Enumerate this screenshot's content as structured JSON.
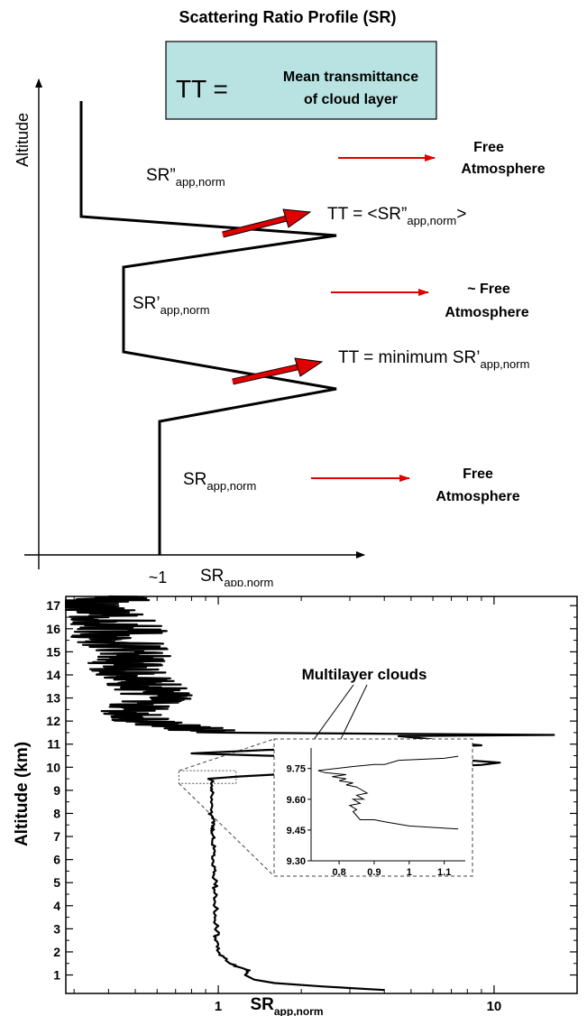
{
  "chart_data": [
    {
      "type": "line",
      "title": "Scattering Ratio Profile (SR)",
      "xlabel_main": "SR",
      "xlabel_sub": "app,norm",
      "ylabel": "Altitude",
      "x_tick": "~1",
      "tt_box": {
        "lhs": "TT =",
        "line1": "Mean transmittance",
        "line2": "of cloud layer"
      },
      "layers": [
        {
          "label_main": "SR”",
          "label_sub": "app,norm",
          "arrow_text_1": "Free",
          "arrow_text_2": "Atmosphere"
        },
        {
          "label_main": "SR’",
          "label_sub": "app,norm",
          "arrow_text_1": "~ Free",
          "arrow_text_2": "Atmosphere"
        },
        {
          "label_main": "SR",
          "label_sub": "app,norm",
          "arrow_text_1": "Free",
          "arrow_text_2": "Atmosphere"
        }
      ],
      "tt_annotations": [
        {
          "prefix": "TT = <SR”",
          "sub": "app,norm",
          "suffix": ">"
        },
        {
          "prefix": "TT = minimum SR’",
          "sub": "app,norm",
          "suffix": ""
        }
      ]
    },
    {
      "type": "line",
      "xlabel_main": "SR",
      "xlabel_sub": "app,norm",
      "ylabel": "Altitude (km)",
      "xscale": "log",
      "xlim": [
        0.28,
        20
      ],
      "ylim": [
        0.2,
        17.4
      ],
      "x_tick_labels": [
        "1",
        "10"
      ],
      "x_ticks": [
        1,
        10
      ],
      "y_ticks": [
        1,
        2,
        3,
        4,
        5,
        6,
        7,
        8,
        9,
        10,
        11,
        12,
        13,
        14,
        15,
        16,
        17
      ],
      "annotation": "Multilayer clouds",
      "series": [
        {
          "x": [
            4.0,
            2.4,
            1.6,
            1.35,
            1.25,
            1.3,
            1.18,
            1.1,
            1.05,
            1.0,
            1.0,
            0.98,
            0.99,
            0.98,
            0.97,
            0.98,
            0.97,
            0.98,
            0.97,
            0.98,
            0.96,
            0.97,
            0.96,
            0.97,
            0.96,
            0.95,
            0.96,
            0.95,
            0.96,
            0.95,
            0.95,
            0.94,
            0.95,
            0.94,
            0.95,
            0.95,
            0.94,
            0.95,
            0.94,
            0.95,
            0.96,
            0.94,
            0.95,
            0.94,
            0.95,
            0.94,
            0.96,
            0.92,
            1.2,
            1.7,
            2.5,
            4.0,
            6.0,
            9.0,
            10.5,
            8.0,
            4.0,
            1.5,
            0.8,
            1.5,
            4.0,
            7.0,
            9.0,
            8.0,
            6.0,
            6.5,
            5.5,
            6.0,
            5.5,
            5.0,
            4.5,
            16.5,
            1.0,
            0.55,
            0.5,
            0.6,
            0.55,
            0.5,
            0.45,
            0.5,
            0.42,
            0.45,
            0.4,
            0.35,
            0.4
          ],
          "y": [
            0.35,
            0.5,
            0.65,
            0.8,
            1.0,
            1.2,
            1.35,
            1.5,
            1.75,
            2.0,
            2.3,
            2.6,
            2.9,
            3.2,
            3.5,
            3.8,
            4.1,
            4.4,
            4.7,
            5.0,
            5.3,
            5.6,
            5.9,
            6.2,
            6.5,
            6.8,
            7.0,
            7.2,
            7.4,
            7.6,
            7.8,
            7.95,
            8.05,
            8.15,
            8.3,
            8.4,
            8.5,
            8.6,
            8.7,
            8.8,
            8.9,
            9.0,
            9.05,
            9.1,
            9.2,
            9.3,
            9.4,
            9.5,
            9.6,
            9.7,
            9.8,
            9.9,
            10.0,
            10.1,
            10.2,
            10.3,
            10.4,
            10.5,
            10.6,
            10.75,
            10.85,
            10.9,
            10.95,
            11.0,
            11.05,
            11.1,
            11.15,
            11.2,
            11.25,
            11.3,
            11.35,
            11.4,
            11.5,
            12.0,
            12.5,
            13.0,
            13.5,
            14.0,
            14.5,
            15.0,
            15.5,
            16.0,
            16.5,
            17.0,
            17.4
          ]
        }
      ],
      "inset": {
        "xlim": [
          0.72,
          1.16
        ],
        "ylim": [
          9.3,
          9.85
        ],
        "x_ticks": [
          0.8,
          0.9,
          1.0,
          1.1
        ],
        "x_tick_labels": [
          "0.8",
          "0.9",
          "1",
          "1.1"
        ],
        "y_ticks": [
          9.3,
          9.45,
          9.6,
          9.75
        ],
        "y_tick_labels": [
          "9.30",
          "9.45",
          "9.60",
          "9.75"
        ],
        "x": [
          1.14,
          1.0,
          0.93,
          0.9,
          0.86,
          0.85,
          0.84,
          0.85,
          0.83,
          0.86,
          0.84,
          0.87,
          0.85,
          0.88,
          0.86,
          0.85,
          0.82,
          0.84,
          0.8,
          0.82,
          0.78,
          0.82,
          0.76,
          0.74,
          0.84,
          0.9,
          0.93,
          0.97,
          1.1,
          1.14
        ],
        "y": [
          9.455,
          9.47,
          9.49,
          9.5,
          9.5,
          9.52,
          9.54,
          9.55,
          9.57,
          9.58,
          9.6,
          9.6,
          9.62,
          9.63,
          9.65,
          9.66,
          9.67,
          9.68,
          9.69,
          9.7,
          9.71,
          9.72,
          9.73,
          9.74,
          9.76,
          9.77,
          9.77,
          9.79,
          9.8,
          9.81
        ]
      }
    }
  ]
}
